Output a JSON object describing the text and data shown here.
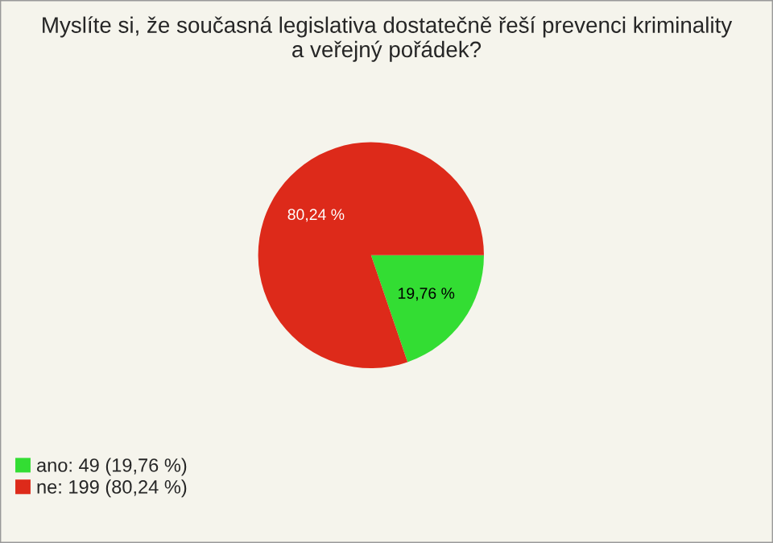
{
  "chart_data": {
    "type": "pie",
    "title": "Myslíte si, že současná legislativa dostatečně řeší prevenci kriminality\na veřejný pořádek?",
    "categories": [
      "ano: 49 (19,76 %)",
      "ne: 199 (80,24 %)"
    ],
    "values": [
      19.76,
      80.24
    ],
    "value_labels": [
      "19,76 %",
      "80,24 %"
    ],
    "colors": [
      "#33dd33",
      "#dd2a1a"
    ],
    "legend": "bottom left"
  }
}
